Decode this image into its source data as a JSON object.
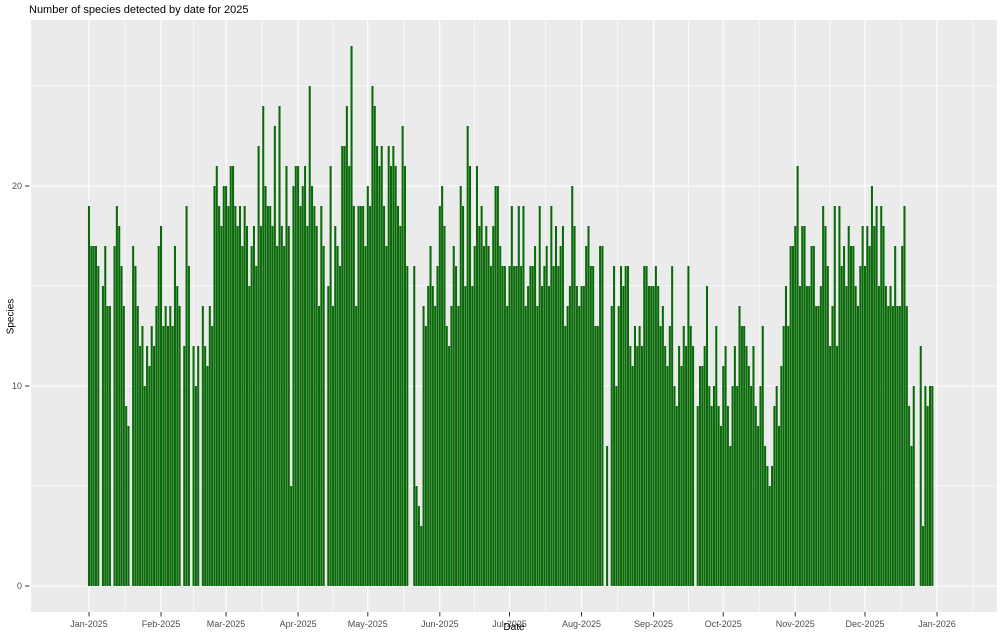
{
  "title": "Number of species detected by date for 2025",
  "axes": {
    "xlabel": "Date",
    "ylabel": "Species",
    "y_tick_labels": [
      "0",
      "10",
      "20"
    ],
    "x_tick_labels": [
      "Jan-2025",
      "Feb-2025",
      "Mar-2025",
      "Apr-2025",
      "May-2025",
      "Jun-2025",
      "Jul-2025",
      "Aug-2025",
      "Sep-2025",
      "Oct-2025",
      "Nov-2025",
      "Dec-2025",
      "Jan-2026"
    ]
  },
  "colors": {
    "bar": "#0a6a0a",
    "panel_background": "#ebebeb",
    "gridline": "#ffffff",
    "tick_mark": "#333333",
    "tick_label_text": "#4d4d4d",
    "title_text": "#000000"
  },
  "chart_data": {
    "type": "bar",
    "title": "Number of species detected by date for 2025",
    "xlabel": "Date",
    "ylabel": "Species",
    "x_unit": "day",
    "start_date": "2025-01-01",
    "ylim": [
      0,
      28
    ],
    "y_major_gridlines": [
      0,
      10,
      20
    ],
    "y_minor_gridlines": [
      5,
      15,
      25
    ],
    "grid": true,
    "legend": false,
    "note": "One bar per day; 0 means no bar (no data detected/plotted that day)",
    "months": [
      {
        "month": "Jan-2025",
        "values": [
          19,
          17,
          17,
          17,
          16,
          0,
          15,
          17,
          14,
          14,
          0,
          17,
          19,
          18,
          16,
          14,
          9,
          8,
          0,
          17,
          16,
          14,
          12,
          13,
          10,
          12,
          11,
          13,
          12,
          14,
          17
        ]
      },
      {
        "month": "Feb-2025",
        "values": [
          18,
          13,
          14,
          13,
          14,
          13,
          17,
          15,
          14,
          0,
          12,
          19,
          16,
          0,
          12,
          10,
          12,
          0,
          14,
          12,
          11,
          14,
          13,
          20,
          21,
          19,
          18,
          20
        ]
      },
      {
        "month": "Mar-2025",
        "values": [
          20,
          19,
          21,
          21,
          19,
          18,
          19,
          17,
          19,
          18,
          15,
          17,
          18,
          16,
          22,
          18,
          24,
          20,
          19,
          19,
          18,
          23,
          17,
          24,
          18,
          17,
          21,
          18,
          5,
          20,
          21
        ]
      },
      {
        "month": "Apr-2025",
        "values": [
          21,
          19,
          20,
          21,
          18,
          25,
          20,
          19,
          18,
          14,
          19,
          17,
          0,
          15,
          21,
          14,
          18,
          17,
          16,
          22,
          22,
          24,
          21,
          27,
          19,
          14,
          19,
          19,
          19,
          17
        ]
      },
      {
        "month": "May-2025",
        "values": [
          20,
          19,
          25,
          24,
          22,
          21,
          22,
          19,
          17,
          22,
          21,
          22,
          21,
          19,
          18,
          23,
          21,
          16,
          0,
          0,
          16,
          5,
          4,
          3,
          14,
          13,
          15,
          17,
          15,
          14,
          16
        ]
      },
      {
        "month": "Jun-2025",
        "values": [
          19,
          20,
          18,
          13,
          12,
          14,
          17,
          16,
          14,
          20,
          19,
          15,
          23,
          21,
          15,
          17,
          21,
          18,
          19,
          17,
          18,
          17,
          16,
          18,
          20,
          20,
          17,
          16,
          16,
          14
        ]
      },
      {
        "month": "Jul-2025",
        "values": [
          16,
          19,
          16,
          16,
          19,
          16,
          19,
          14,
          15,
          16,
          16,
          17,
          14,
          19,
          15,
          16,
          17,
          15,
          19,
          16,
          18,
          16,
          17,
          18,
          13,
          14,
          15,
          20,
          18,
          15,
          14
        ]
      },
      {
        "month": "Aug-2025",
        "values": [
          15,
          15,
          17,
          18,
          16,
          16,
          13,
          13,
          17,
          17,
          0,
          7,
          0,
          14,
          16,
          10,
          14,
          16,
          15,
          16,
          16,
          12,
          11,
          13,
          12,
          13,
          12,
          16,
          16,
          15,
          15
        ]
      },
      {
        "month": "Sep-2025",
        "values": [
          15,
          16,
          15,
          13,
          14,
          12,
          11,
          13,
          16,
          10,
          9,
          12,
          11,
          13,
          12,
          16,
          13,
          12,
          0,
          9,
          11,
          11,
          12,
          15,
          10,
          9,
          10,
          13,
          9,
          8
        ]
      },
      {
        "month": "Oct-2025",
        "values": [
          11,
          12,
          9,
          7,
          10,
          12,
          10,
          14,
          13,
          13,
          12,
          11,
          10,
          12,
          9,
          8,
          10,
          13,
          7,
          6,
          5,
          6,
          9,
          10,
          8,
          11,
          13,
          15,
          13,
          17,
          17
        ]
      },
      {
        "month": "Nov-2025",
        "values": [
          18,
          21,
          15,
          18,
          18,
          15,
          15,
          17,
          17,
          14,
          14,
          15,
          19,
          18,
          16,
          12,
          14,
          19,
          12,
          19,
          16,
          17,
          15,
          18,
          17,
          17,
          15,
          14,
          16,
          18
        ]
      },
      {
        "month": "Dec-2025",
        "values": [
          16,
          18,
          17,
          20,
          18,
          19,
          15,
          19,
          18,
          15,
          14,
          15,
          14,
          17,
          14,
          14,
          17,
          19,
          14,
          9,
          7,
          10,
          0,
          0,
          12,
          3,
          10,
          9,
          10,
          10,
          0
        ]
      }
    ]
  }
}
